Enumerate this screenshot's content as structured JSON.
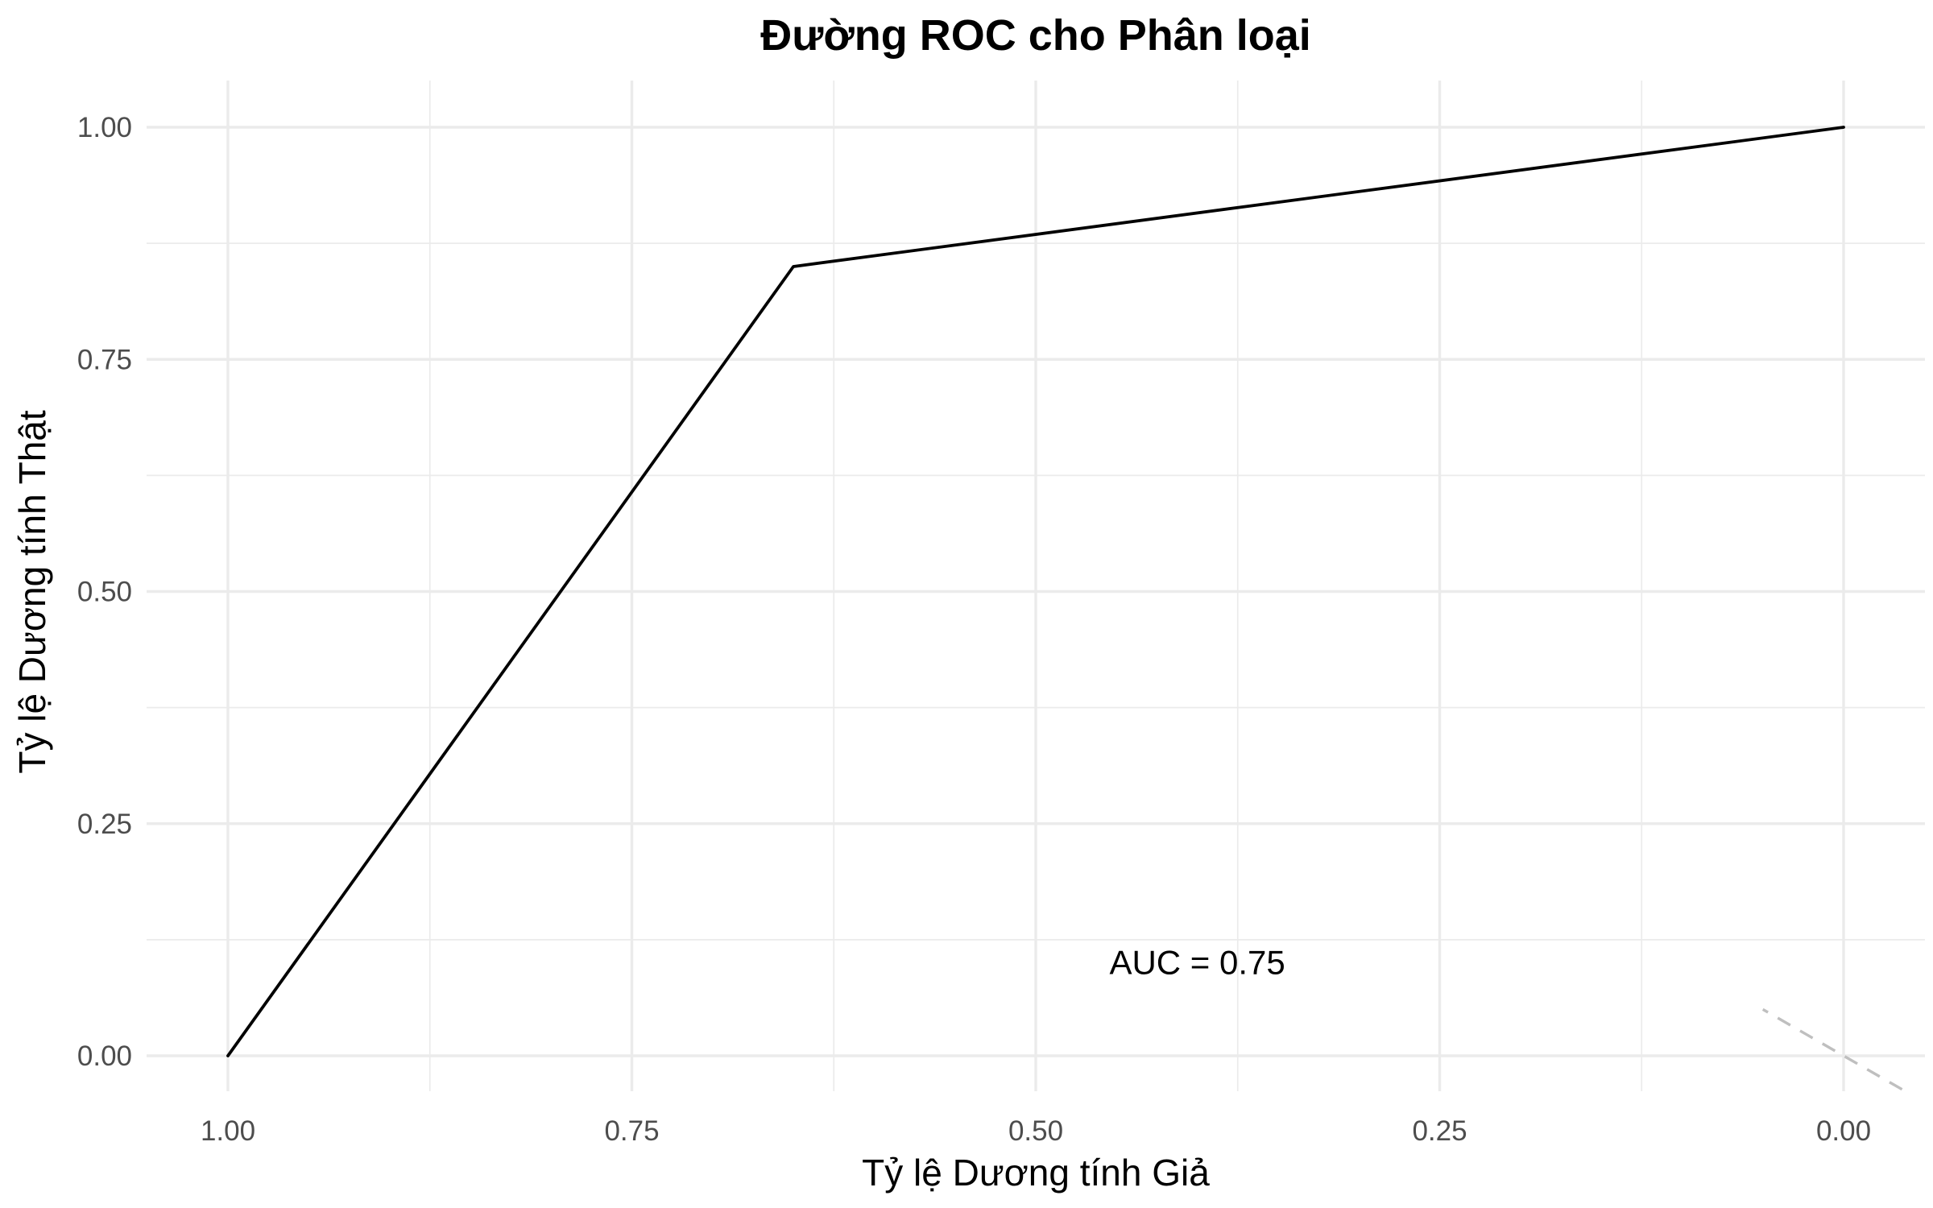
{
  "chart_data": {
    "type": "line",
    "title": "Đường ROC cho Phân loại",
    "xlabel": "Tỷ lệ Dương tính Giả",
    "ylabel": "Tỷ lệ Dương tính Thật",
    "x_reversed": true,
    "xlim": [
      1.05,
      -0.05
    ],
    "ylim": [
      -0.05,
      1.04
    ],
    "x_ticks": [
      1.0,
      0.75,
      0.5,
      0.25,
      0.0
    ],
    "x_tick_labels": [
      "1.00",
      "0.75",
      "0.50",
      "0.25",
      "0.00"
    ],
    "y_ticks": [
      0.0,
      0.25,
      0.5,
      0.75,
      1.0
    ],
    "y_tick_labels": [
      "0.00",
      "0.25",
      "0.50",
      "0.75",
      "1.00"
    ],
    "x_minor_ticks": [
      0.875,
      0.625,
      0.375,
      0.125
    ],
    "y_minor_ticks": [
      0.125,
      0.375,
      0.625,
      0.875
    ],
    "grid": true,
    "series": [
      {
        "values_x": [
          1.0,
          0.65,
          0.0
        ],
        "values_y": [
          0.0,
          0.85,
          1.0
        ],
        "color": "#000000",
        "style": "solid"
      }
    ],
    "reference_line": {
      "x": [
        -0.05,
        0.05
      ],
      "y": [
        -0.05,
        0.05
      ],
      "color": "#bfbfbf",
      "style": "dashed"
    },
    "annotations": [
      {
        "text": "AUC = 0.75",
        "x": 0.4,
        "y": 0.1
      }
    ]
  }
}
